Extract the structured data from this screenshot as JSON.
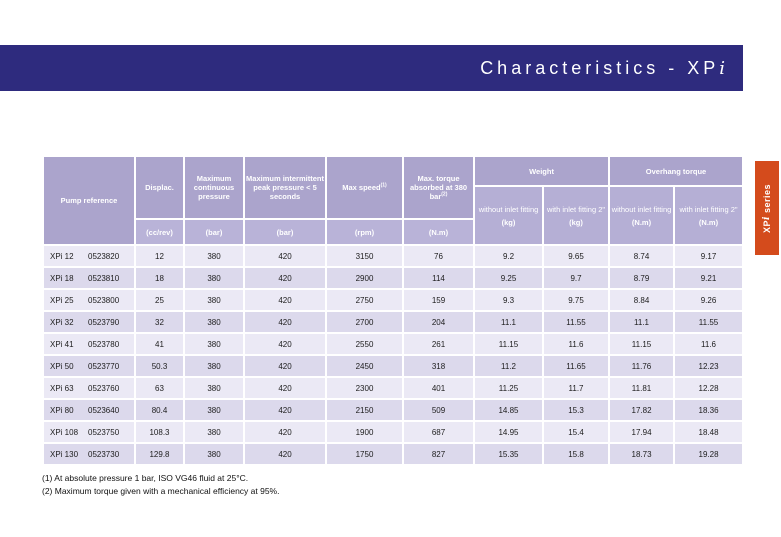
{
  "banner": {
    "title_main": "Characteristics - XP",
    "title_i": "i"
  },
  "side_tab": {
    "part_xp": "XP",
    "part_i": "i",
    "part_series": " series"
  },
  "table": {
    "headers": {
      "pump_reference": "Pump reference",
      "displacement": "Displac.",
      "max_continuous_pressure": "Maximum continuous pressure",
      "max_intermittent_pressure": "Maximum intermittent peak pressure < 5 seconds",
      "max_speed": "Max speed",
      "max_speed_sup": "(1)",
      "max_torque": "Max. torque absorbed at 380 bar",
      "max_torque_sup": "(2)",
      "weight_group": "Weight",
      "overhang_group": "Overhang torque",
      "sub_without": "without inlet fitting",
      "sub_with": "with inlet fitting 2\""
    },
    "units": {
      "displacement": "(cc/rev)",
      "max_continuous_pressure": "(bar)",
      "max_intermittent_pressure": "(bar)",
      "max_speed": "(rpm)",
      "max_torque": "(N.m)",
      "weight": "(kg)",
      "overhang": "(N.m)"
    },
    "rows": [
      {
        "model": "XPi 12",
        "code": "0523820",
        "displacement": "12",
        "max_cont_pressure": "380",
        "max_peak_pressure": "420",
        "max_speed": "3150",
        "max_torque": "76",
        "weight_without": "9.2",
        "weight_with": "9.65",
        "overhang_without": "8.74",
        "overhang_with": "9.17"
      },
      {
        "model": "XPi 18",
        "code": "0523810",
        "displacement": "18",
        "max_cont_pressure": "380",
        "max_peak_pressure": "420",
        "max_speed": "2900",
        "max_torque": "114",
        "weight_without": "9.25",
        "weight_with": "9.7",
        "overhang_without": "8.79",
        "overhang_with": "9.21"
      },
      {
        "model": "XPi 25",
        "code": "0523800",
        "displacement": "25",
        "max_cont_pressure": "380",
        "max_peak_pressure": "420",
        "max_speed": "2750",
        "max_torque": "159",
        "weight_without": "9.3",
        "weight_with": "9.75",
        "overhang_without": "8.84",
        "overhang_with": "9.26"
      },
      {
        "model": "XPi 32",
        "code": "0523790",
        "displacement": "32",
        "max_cont_pressure": "380",
        "max_peak_pressure": "420",
        "max_speed": "2700",
        "max_torque": "204",
        "weight_without": "11.1",
        "weight_with": "11.55",
        "overhang_without": "11.1",
        "overhang_with": "11.55"
      },
      {
        "model": "XPi 41",
        "code": "0523780",
        "displacement": "41",
        "max_cont_pressure": "380",
        "max_peak_pressure": "420",
        "max_speed": "2550",
        "max_torque": "261",
        "weight_without": "11.15",
        "weight_with": "11.6",
        "overhang_without": "11.15",
        "overhang_with": "11.6"
      },
      {
        "model": "XPi 50",
        "code": "0523770",
        "displacement": "50.3",
        "max_cont_pressure": "380",
        "max_peak_pressure": "420",
        "max_speed": "2450",
        "max_torque": "318",
        "weight_without": "11.2",
        "weight_with": "11.65",
        "overhang_without": "11.76",
        "overhang_with": "12.23"
      },
      {
        "model": "XPi 63",
        "code": "0523760",
        "displacement": "63",
        "max_cont_pressure": "380",
        "max_peak_pressure": "420",
        "max_speed": "2300",
        "max_torque": "401",
        "weight_without": "11.25",
        "weight_with": "11.7",
        "overhang_without": "11.81",
        "overhang_with": "12.28"
      },
      {
        "model": "XPi 80",
        "code": "0523640",
        "displacement": "80.4",
        "max_cont_pressure": "380",
        "max_peak_pressure": "420",
        "max_speed": "2150",
        "max_torque": "509",
        "weight_without": "14.85",
        "weight_with": "15.3",
        "overhang_without": "17.82",
        "overhang_with": "18.36"
      },
      {
        "model": "XPi 108",
        "code": "0523750",
        "displacement": "108.3",
        "max_cont_pressure": "380",
        "max_peak_pressure": "420",
        "max_speed": "1900",
        "max_torque": "687",
        "weight_without": "14.95",
        "weight_with": "15.4",
        "overhang_without": "17.94",
        "overhang_with": "18.48"
      },
      {
        "model": "XPi 130",
        "code": "0523730",
        "displacement": "129.8",
        "max_cont_pressure": "380",
        "max_peak_pressure": "420",
        "max_speed": "1750",
        "max_torque": "827",
        "weight_without": "15.35",
        "weight_with": "15.8",
        "overhang_without": "18.73",
        "overhang_with": "19.28"
      }
    ]
  },
  "footnotes": [
    "(1) At absolute pressure 1 bar, ISO VG46 fluid at 25°C.",
    "(2) Maximum torque given with a mechanical efficiency at 95%."
  ],
  "colors": {
    "banner_bg": "#2E2B7E",
    "header_bg": "#ABA4CC",
    "subheader_bg": "#B5AFD5",
    "units_bg": "#B9B3D8",
    "row_light": "#EBE9F5",
    "row_dark": "#DCD9EC",
    "tab_bg": "#D44B1C"
  }
}
